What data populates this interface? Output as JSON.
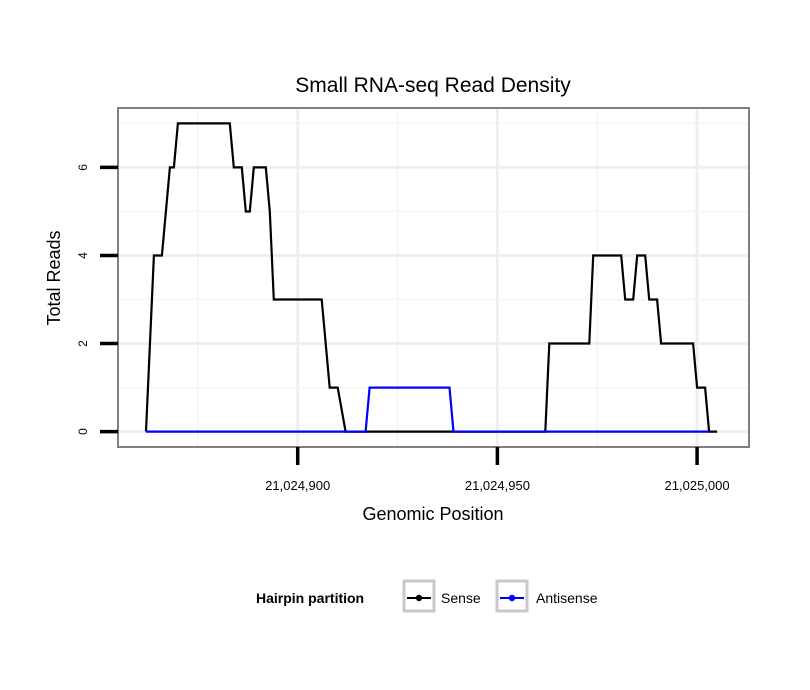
{
  "chart_data": {
    "type": "line",
    "title": "Small RNA-seq Read Density",
    "xlabel": "Genomic Position",
    "ylabel": "Total Reads",
    "xlim": [
      21024855,
      21025013
    ],
    "ylim": [
      -0.35,
      7.35
    ],
    "x_ticks": [
      {
        "value": 21024900,
        "label": "21,024,900"
      },
      {
        "value": 21024950,
        "label": "21,024,950"
      },
      {
        "value": 21025000,
        "label": "21,025,000"
      }
    ],
    "y_ticks": [
      {
        "value": 0,
        "label": "0"
      },
      {
        "value": 2,
        "label": "2"
      },
      {
        "value": 4,
        "label": "4"
      },
      {
        "value": 6,
        "label": "6"
      }
    ],
    "grid": true,
    "legend": {
      "title": "Hairpin partition",
      "position": "bottom",
      "entries": [
        "Sense",
        "Antisense"
      ]
    },
    "series": [
      {
        "name": "Sense",
        "color": "#000000",
        "points": [
          [
            21024862,
            0
          ],
          [
            21024864,
            4
          ],
          [
            21024866,
            4
          ],
          [
            21024868,
            6
          ],
          [
            21024869,
            6
          ],
          [
            21024870,
            7
          ],
          [
            21024883,
            7
          ],
          [
            21024884,
            6
          ],
          [
            21024886,
            6
          ],
          [
            21024887,
            5
          ],
          [
            21024888,
            5
          ],
          [
            21024889,
            6
          ],
          [
            21024892,
            6
          ],
          [
            21024893,
            5
          ],
          [
            21024894,
            3
          ],
          [
            21024906,
            3
          ],
          [
            21024908,
            1
          ],
          [
            21024910,
            1
          ],
          [
            21024912,
            0
          ],
          [
            21024962,
            0
          ],
          [
            21024963,
            2
          ],
          [
            21024973,
            2
          ],
          [
            21024974,
            4
          ],
          [
            21024981,
            4
          ],
          [
            21024982,
            3
          ],
          [
            21024984,
            3
          ],
          [
            21024985,
            4
          ],
          [
            21024987,
            4
          ],
          [
            21024988,
            3
          ],
          [
            21024990,
            3
          ],
          [
            21024991,
            2
          ],
          [
            21024999,
            2
          ],
          [
            21025000,
            1
          ],
          [
            21025002,
            1
          ],
          [
            21025003,
            0
          ],
          [
            21025005,
            0
          ]
        ]
      },
      {
        "name": "Antisense",
        "color": "#0000ff",
        "points": [
          [
            21024862,
            0
          ],
          [
            21024917,
            0
          ],
          [
            21024918,
            1
          ],
          [
            21024938,
            1
          ],
          [
            21024939,
            0
          ],
          [
            21025003,
            0
          ]
        ]
      }
    ]
  }
}
